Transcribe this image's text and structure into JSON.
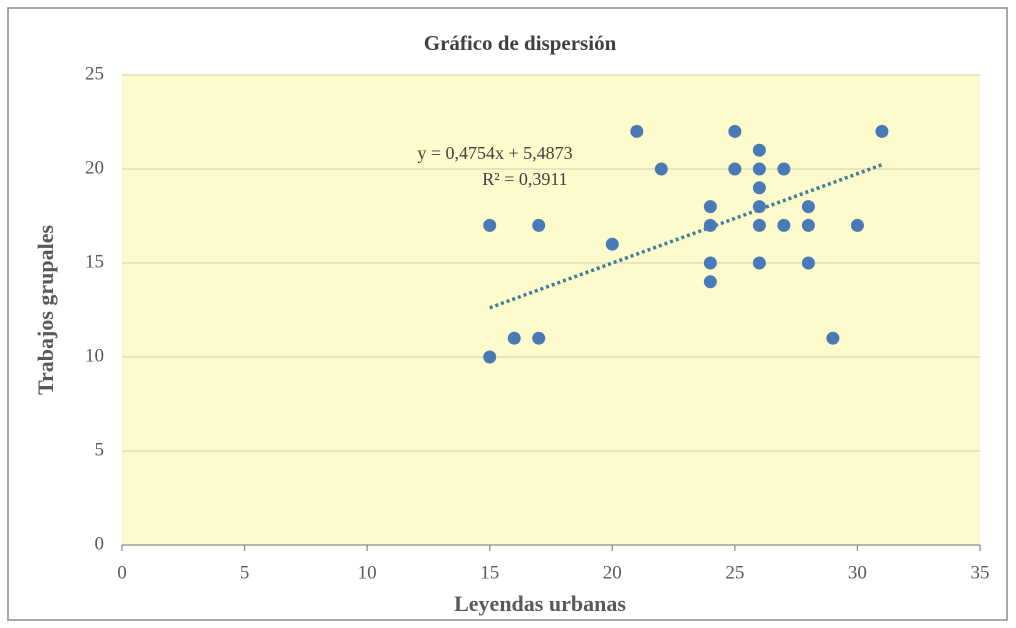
{
  "chart_data": {
    "type": "scatter",
    "title": "Gráfico de dispersión",
    "x_label": "Leyendas urbanas",
    "y_label": "Trabajos grupales",
    "x": [
      15,
      15,
      16,
      17,
      17,
      20,
      21,
      22,
      24,
      24,
      24,
      24,
      25,
      25,
      26,
      26,
      26,
      26,
      26,
      26,
      27,
      27,
      28,
      28,
      28,
      29,
      30,
      31
    ],
    "values": [
      17,
      10,
      11,
      17,
      11,
      16,
      22,
      20,
      18,
      17,
      15,
      14,
      22,
      20,
      21,
      20,
      19,
      18,
      17,
      15,
      20,
      17,
      18,
      17,
      15,
      11,
      17,
      22
    ],
    "color": "#4a7ab5",
    "trendline": {
      "slope": 0.4754,
      "intercept": 5.4873,
      "color": "#3d7f9a"
    },
    "annotations": [
      "y = 0,4754x  + 5,4873",
      "R² = 0,3911"
    ],
    "xlim": [
      0,
      35
    ],
    "xticks": [
      0,
      5,
      10,
      15,
      20,
      25,
      30,
      35
    ],
    "ylim": [
      0,
      25
    ],
    "yticks": [
      0,
      5,
      10,
      15,
      20,
      25
    ],
    "grid": true
  }
}
